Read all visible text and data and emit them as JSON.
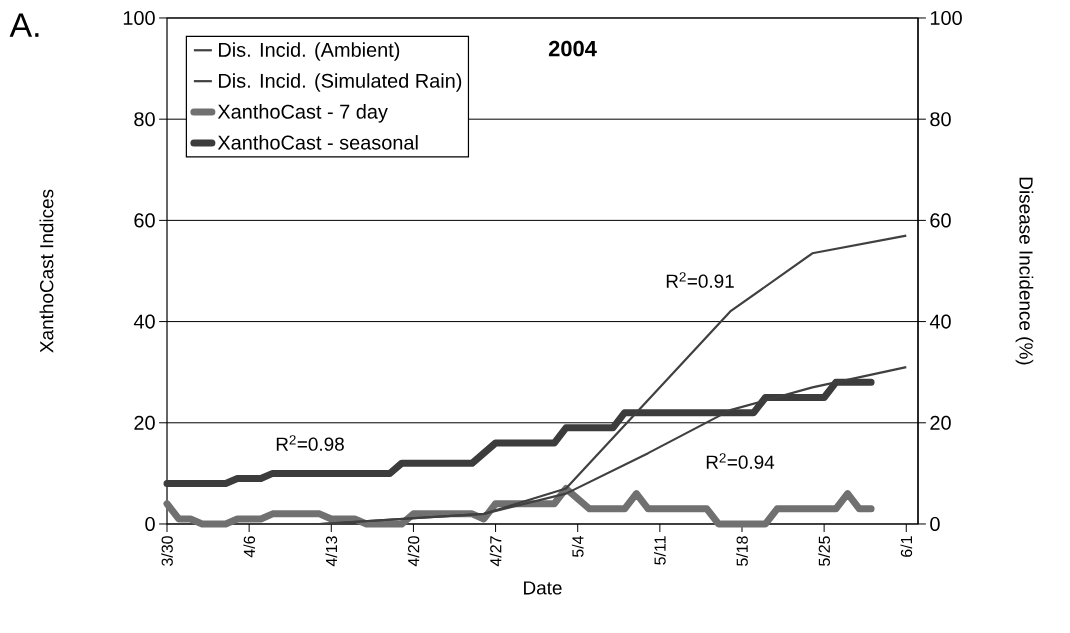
{
  "chart_data": {
    "type": "line",
    "title": "2004",
    "xlabel": "Date",
    "ylabel": "XanthoCast Indices",
    "y2label": "Disease Incidence (%)",
    "xlim": [
      "2004-03-30",
      "2004-06-02"
    ],
    "xticks": [
      {
        "value": "2004-03-30",
        "label": "3/30"
      },
      {
        "value": "2004-04-06",
        "label": "4/6"
      },
      {
        "value": "2004-04-13",
        "label": "4/13"
      },
      {
        "value": "2004-04-20",
        "label": "4/20"
      },
      {
        "value": "2004-04-27",
        "label": "4/27"
      },
      {
        "value": "2004-05-04",
        "label": "5/4"
      },
      {
        "value": "2004-05-11",
        "label": "5/11"
      },
      {
        "value": "2004-05-18",
        "label": "5/18"
      },
      {
        "value": "2004-05-25",
        "label": "5/25"
      },
      {
        "value": "2004-06-01",
        "label": "6/1"
      }
    ],
    "ylim": [
      0,
      100
    ],
    "yticks": [
      0,
      20,
      40,
      60,
      80,
      100
    ],
    "y2lim": [
      0,
      100
    ],
    "y2ticks": [
      0,
      20,
      40,
      60,
      80,
      100
    ],
    "grid": "y",
    "legend": "top left",
    "series": [
      {
        "name": "Dis. Incid. (Ambient)",
        "color": "#404040",
        "axis": "y2",
        "x": [
          "2004-04-12",
          "2004-04-26",
          "2004-05-03",
          "2004-05-17",
          "2004-05-24",
          "2004-06-01"
        ],
        "values": [
          0,
          2,
          7,
          42,
          53.5,
          57
        ]
      },
      {
        "name": "Dis. Incid. (Simulated Rain)",
        "color": "#404040",
        "axis": "y2",
        "x": [
          "2004-04-12",
          "2004-04-26",
          "2004-05-03",
          "2004-05-10",
          "2004-05-17",
          "2004-05-24",
          "2004-06-01"
        ],
        "values": [
          0,
          2,
          6,
          14,
          22.5,
          27,
          31
        ]
      },
      {
        "name": "XanthoCast - 7 day",
        "color": "#707070",
        "axis": "y",
        "x": [
          "2004-03-30",
          "2004-03-31",
          "2004-04-01",
          "2004-04-02",
          "2004-04-04",
          "2004-04-05",
          "2004-04-07",
          "2004-04-08",
          "2004-04-12",
          "2004-04-13",
          "2004-04-15",
          "2004-04-16",
          "2004-04-19",
          "2004-04-20",
          "2004-04-25",
          "2004-04-26",
          "2004-04-27",
          "2004-05-02",
          "2004-05-03",
          "2004-05-05",
          "2004-05-08",
          "2004-05-09",
          "2004-05-10",
          "2004-05-15",
          "2004-05-16",
          "2004-05-20",
          "2004-05-21",
          "2004-05-26",
          "2004-05-27",
          "2004-05-28",
          "2004-05-29"
        ],
        "values": [
          4,
          1,
          1,
          0,
          0,
          1,
          1,
          2,
          2,
          1,
          1,
          0,
          0,
          2,
          2,
          1,
          4,
          4,
          7,
          3,
          3,
          6,
          3,
          3,
          0,
          0,
          3,
          3,
          6,
          3,
          3
        ]
      },
      {
        "name": "XanthoCast - seasonal",
        "color": "#3c3c3c",
        "axis": "y",
        "x": [
          "2004-03-30",
          "2004-04-04",
          "2004-04-05",
          "2004-04-07",
          "2004-04-08",
          "2004-04-18",
          "2004-04-19",
          "2004-04-25",
          "2004-04-27",
          "2004-05-02",
          "2004-05-03",
          "2004-05-07",
          "2004-05-08",
          "2004-05-19",
          "2004-05-20",
          "2004-05-25",
          "2004-05-26",
          "2004-05-29"
        ],
        "values": [
          8,
          8,
          9,
          9,
          10,
          10,
          12,
          12,
          16,
          16,
          19,
          19,
          22,
          22,
          25,
          25,
          28,
          28
        ]
      }
    ],
    "annotations": [
      "A.",
      "R$^{2}$=0.98",
      "R$^{2}$=0.91",
      "R$^{2}$=0.94"
    ]
  }
}
